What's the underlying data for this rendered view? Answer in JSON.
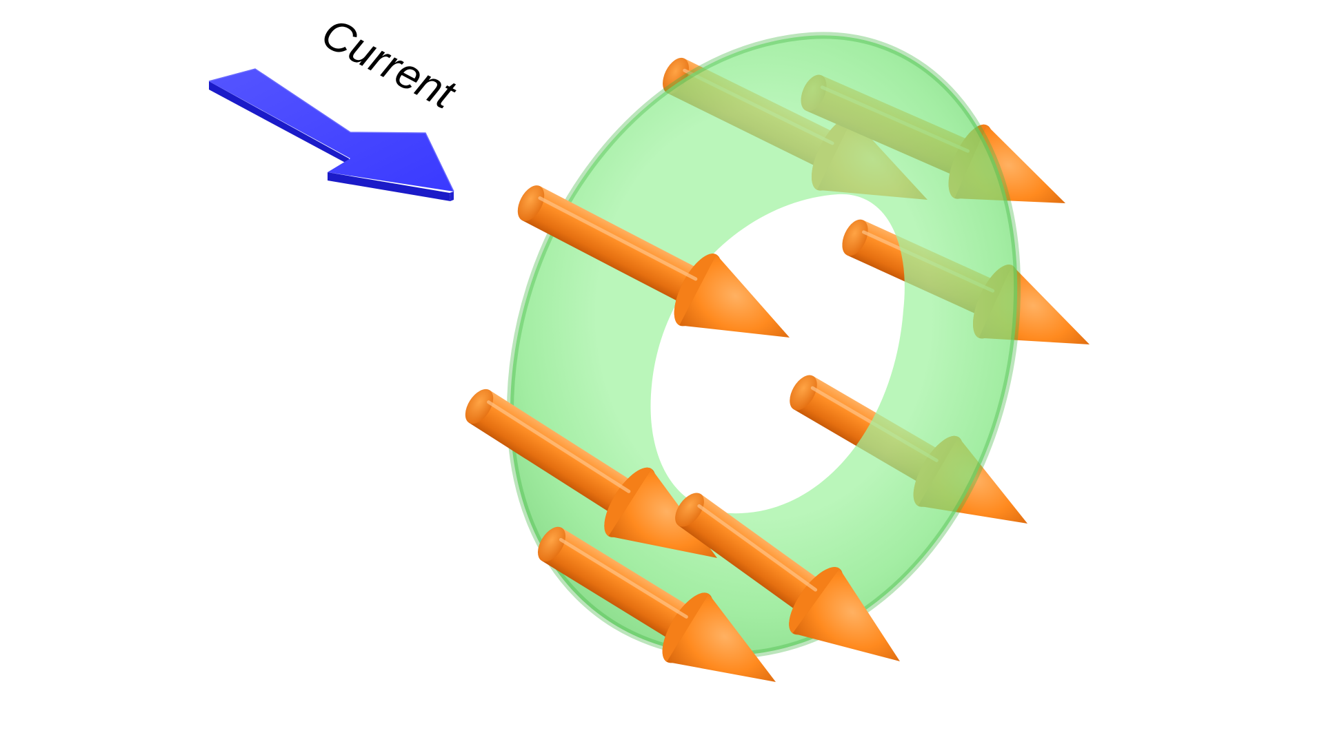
{
  "label": {
    "current": "Current"
  },
  "colors": {
    "current_arrow": "#3b3bff",
    "current_arrow_edge": "#1b1bc8",
    "torus": "#6fe66f",
    "spin_arrow": "#ff8a1f",
    "spin_arrow_dark": "#d9630a",
    "spin_arrow_light": "#ffb060"
  },
  "icons": {
    "current_arrow": "flat-arrow-icon",
    "ring": "torus-shape",
    "spin_arrows": "cone-arrow-icon"
  },
  "spin_arrow_count": 8
}
